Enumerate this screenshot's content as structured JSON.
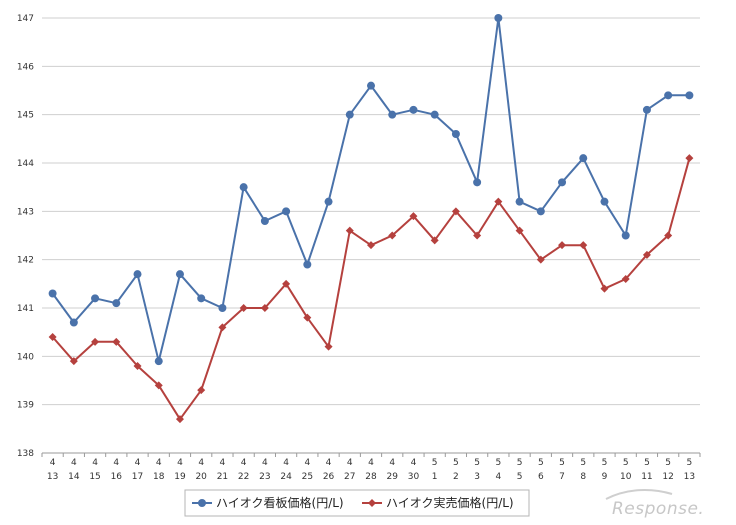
{
  "chart_data": {
    "type": "line",
    "title": "",
    "xlabel": "",
    "ylabel": "",
    "ylim": [
      138,
      147
    ],
    "yticks": [
      "147",
      "146",
      "145",
      "144",
      "143",
      "142",
      "141",
      "140",
      "139",
      "138"
    ],
    "grid": true,
    "legend_position": "bottom-center",
    "categories": [
      {
        "month": "4",
        "day": "13"
      },
      {
        "month": "4",
        "day": "14"
      },
      {
        "month": "4",
        "day": "15"
      },
      {
        "month": "4",
        "day": "16"
      },
      {
        "month": "4",
        "day": "17"
      },
      {
        "month": "4",
        "day": "18"
      },
      {
        "month": "4",
        "day": "19"
      },
      {
        "month": "4",
        "day": "20"
      },
      {
        "month": "4",
        "day": "21"
      },
      {
        "month": "4",
        "day": "22"
      },
      {
        "month": "4",
        "day": "23"
      },
      {
        "month": "4",
        "day": "24"
      },
      {
        "month": "4",
        "day": "25"
      },
      {
        "month": "4",
        "day": "26"
      },
      {
        "month": "4",
        "day": "27"
      },
      {
        "month": "4",
        "day": "28"
      },
      {
        "month": "4",
        "day": "29"
      },
      {
        "month": "4",
        "day": "30"
      },
      {
        "month": "5",
        "day": "1"
      },
      {
        "month": "5",
        "day": "2"
      },
      {
        "month": "5",
        "day": "3"
      },
      {
        "month": "5",
        "day": "4"
      },
      {
        "month": "5",
        "day": "5"
      },
      {
        "month": "5",
        "day": "6"
      },
      {
        "month": "5",
        "day": "7"
      },
      {
        "month": "5",
        "day": "8"
      },
      {
        "month": "5",
        "day": "9"
      },
      {
        "month": "5",
        "day": "10"
      },
      {
        "month": "5",
        "day": "11"
      },
      {
        "month": "5",
        "day": "12"
      },
      {
        "month": "5",
        "day": "13"
      }
    ],
    "series": [
      {
        "name": "ハイオク看板価格(円/L)",
        "color": "#4a72aa",
        "marker": "circle",
        "values": [
          141.3,
          140.7,
          141.2,
          141.1,
          141.7,
          139.9,
          141.7,
          141.2,
          141.0,
          143.5,
          142.8,
          143.0,
          141.9,
          143.2,
          145.0,
          145.6,
          145.0,
          145.1,
          145.0,
          144.6,
          143.6,
          147.0,
          143.2,
          143.0,
          143.6,
          144.1,
          143.2,
          142.5,
          145.1,
          145.4,
          145.4
        ]
      },
      {
        "name": "ハイオク実売価格(円/L)",
        "color": "#b5413e",
        "marker": "diamond",
        "values": [
          140.4,
          139.9,
          140.3,
          140.3,
          139.8,
          139.4,
          138.7,
          139.3,
          140.6,
          141.0,
          141.0,
          141.5,
          140.8,
          140.2,
          142.6,
          142.3,
          142.5,
          142.9,
          142.4,
          143.0,
          142.5,
          143.2,
          142.6,
          142.0,
          142.3,
          142.3,
          141.4,
          141.6,
          142.1,
          142.5,
          144.1
        ]
      }
    ]
  },
  "watermark": "Response."
}
